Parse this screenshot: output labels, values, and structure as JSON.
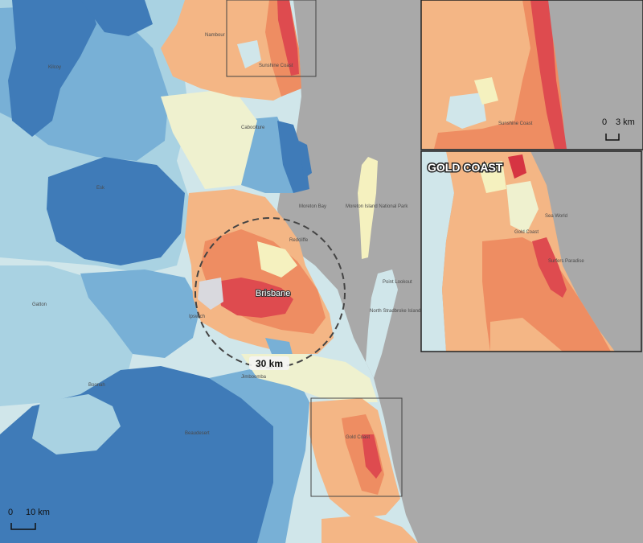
{
  "map": {
    "distance_ring": {
      "label": "30 km"
    },
    "scale_main": {
      "zero": "0",
      "value": "10 km"
    },
    "scale_inset": {
      "zero": "0",
      "value": "3 km"
    },
    "inset_gold_coast": {
      "title": "GOLD COAST"
    },
    "labels": {
      "brisbane": "Brisbane",
      "sunshine_coast": "Sunshine Coast",
      "gold_coast": "Gold Coast",
      "moreton_island": "Moreton Island National Park",
      "moreton_bay": "Moreton Bay",
      "point_lookout": "Point Lookout",
      "north_stradbroke": "North Stradbroke Island",
      "kilcoy": "Kilcoy",
      "esk": "Esk",
      "gatton": "Gatton",
      "ipswich": "Ipswich",
      "beaudesert": "Beaudesert",
      "boonah": "Boonah",
      "jimboomba": "Jimboomba",
      "redcliffe": "Redcliffe",
      "caboolture": "Caboolture",
      "nambour": "Nambour",
      "sea_world": "Sea World",
      "surfers_paradise": "Surfers Paradise"
    },
    "colors": {
      "red": "#de4b4f",
      "red_dark": "#d63442",
      "orange": "#ee8d62",
      "orange_light": "#f4b685",
      "peach": "#f7c99a",
      "cream": "#f5f1bf",
      "pale_yellow": "#eff1cf",
      "pale_blue": "#d0e6ea",
      "light_blue": "#a9d2e2",
      "mid_blue": "#78b0d6",
      "dark_blue": "#3f7bb8",
      "grey": "#d9d9de",
      "sea": "#a9a9a9"
    }
  }
}
